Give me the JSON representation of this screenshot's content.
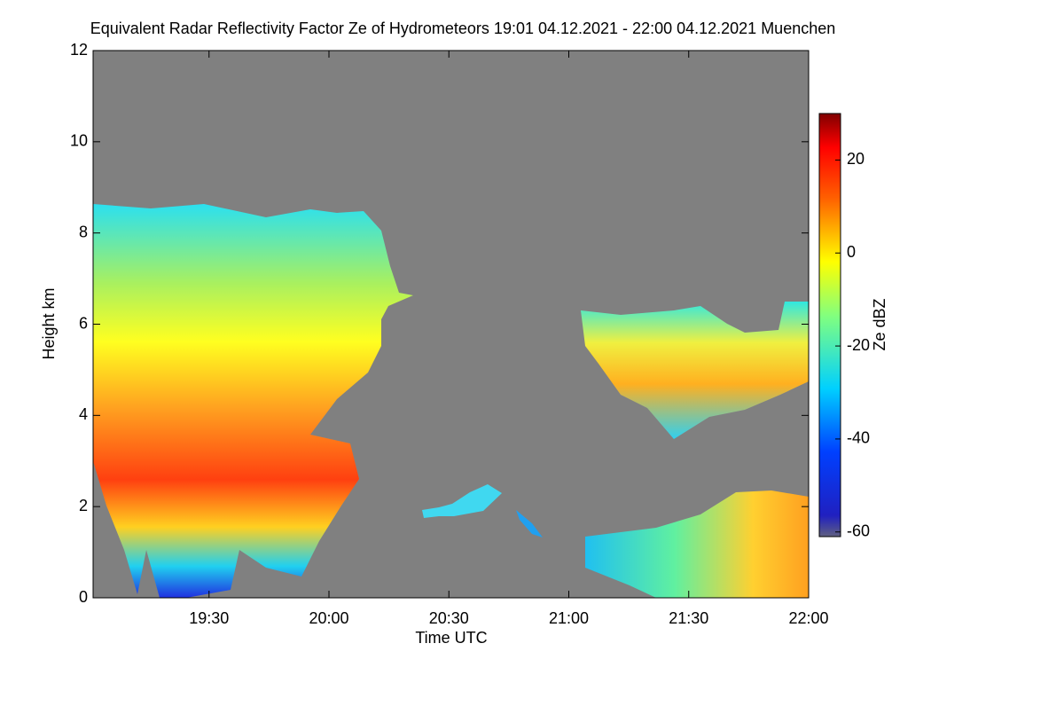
{
  "chart_data": {
    "type": "heatmap",
    "title": "Equivalent Radar Reflectivity Factor Ze of Hydrometeors   19:01 04.12.2021 - 22:00 04.12.2021 Muenchen",
    "xlabel": "Time UTC",
    "ylabel": "Height km",
    "xlim": [
      "19:01",
      "22:00"
    ],
    "xticks": [
      "19:30",
      "20:00",
      "20:30",
      "21:00",
      "21:30",
      "22:00"
    ],
    "ylim": [
      0,
      12
    ],
    "yticks": [
      0,
      2,
      4,
      6,
      8,
      10,
      12
    ],
    "colorbar_label": "Ze dBZ",
    "clim": [
      -61,
      30
    ],
    "cticks": [
      -60,
      -40,
      -20,
      0,
      20
    ]
  }
}
